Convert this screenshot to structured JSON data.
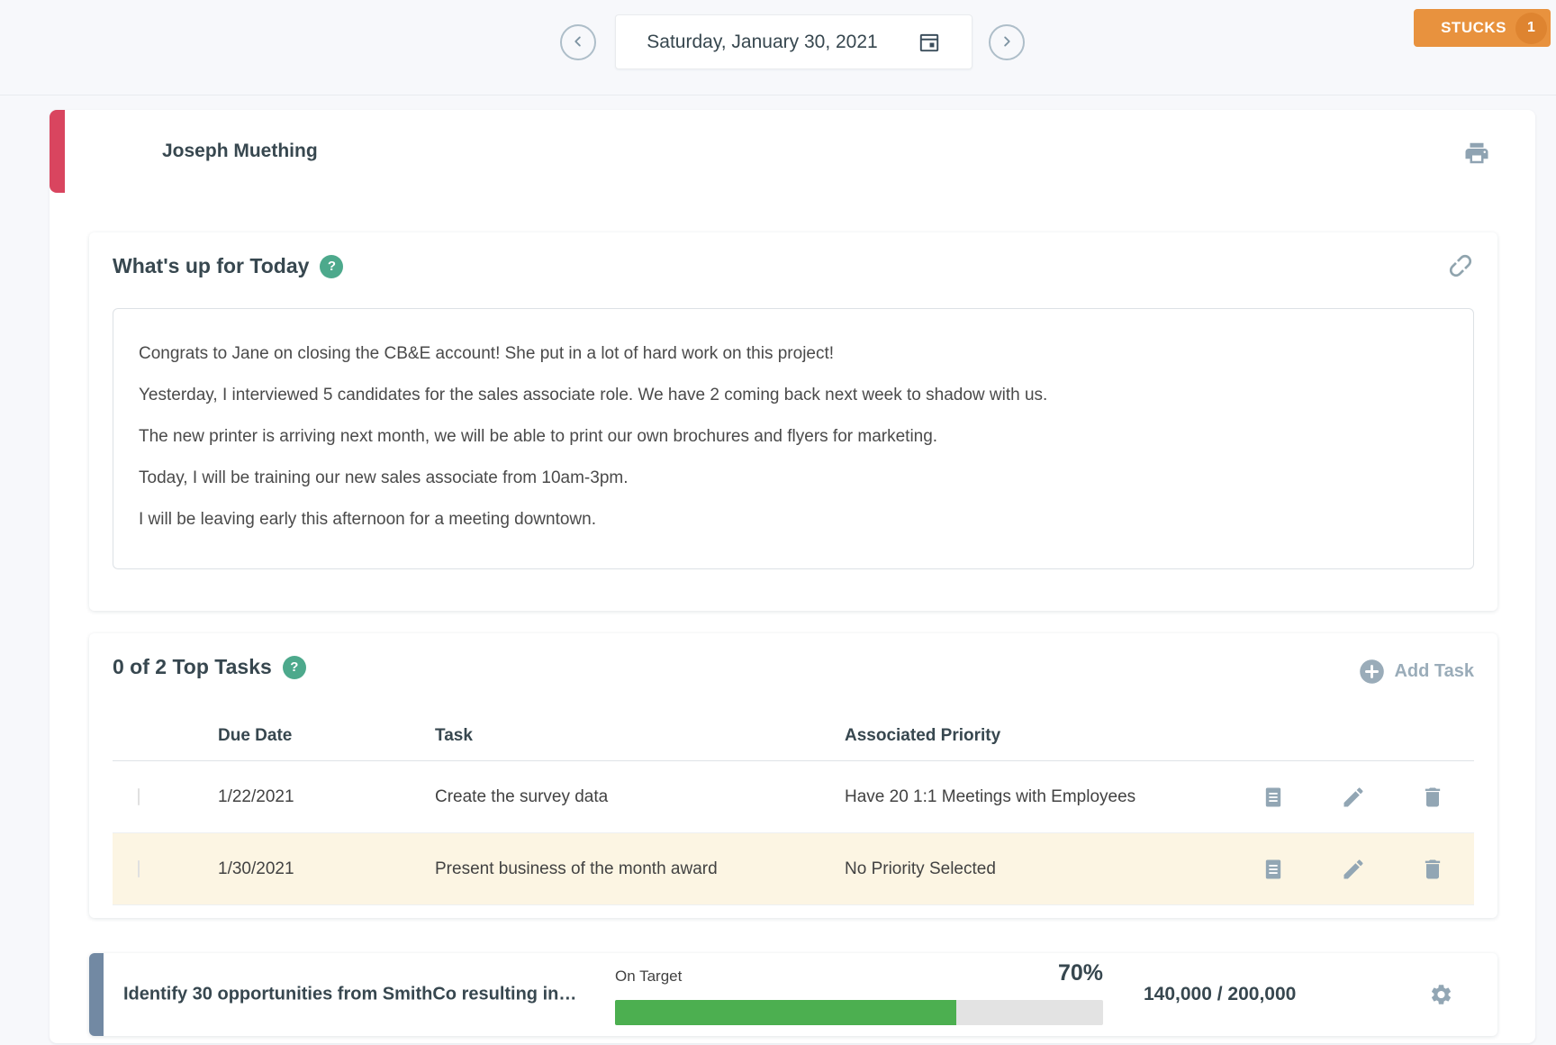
{
  "topbar": {
    "date": "Saturday, January 30, 2021",
    "stucks_label": "STUCKS",
    "stucks_count": "1"
  },
  "huddle": {
    "owner": "Joseph Muething"
  },
  "whats_up": {
    "title": "What's up for Today",
    "paragraphs": [
      "Congrats to Jane on closing the CB&E account! She put in a lot of hard work on this project!",
      "Yesterday, I interviewed 5 candidates for the sales associate role. We have 2 coming back next week to shadow with us.",
      "The new printer is arriving next month, we will be able to print our own brochures and flyers for marketing.",
      "Today, I will be training our new sales associate from 10am-3pm.",
      "I will be leaving early this afternoon for a meeting downtown."
    ]
  },
  "top_tasks": {
    "title": "0 of 2 Top Tasks",
    "add_task_label": "Add Task",
    "columns": {
      "due_date": "Due Date",
      "task": "Task",
      "priority": "Associated Priority"
    },
    "rows": [
      {
        "due_date": "1/22/2021",
        "task": "Create the survey data",
        "priority": "Have 20 1:1 Meetings with Employees",
        "highlighted": false
      },
      {
        "due_date": "1/30/2021",
        "task": "Present business of the month award",
        "priority": "No Priority Selected",
        "highlighted": true
      }
    ]
  },
  "priority": {
    "title": "Identify 30 opportunities from SmithCo resulting in…",
    "status_label": "On Target",
    "percent_label": "70%",
    "progress_value": 70,
    "progress_text": "140,000 / 200,000"
  },
  "colors": {
    "accent_red": "#D9455F",
    "accent_slate": "#7289A3",
    "stucks_orange": "#E8923E",
    "stucks_count_orange": "#DE8430",
    "help_teal": "#4DA98C",
    "progress_green": "#4CAF50",
    "row_highlight_cream": "#FCF5E3",
    "icon_gray_blue": "#92A6B4",
    "text_dark_slate": "#37474F"
  }
}
